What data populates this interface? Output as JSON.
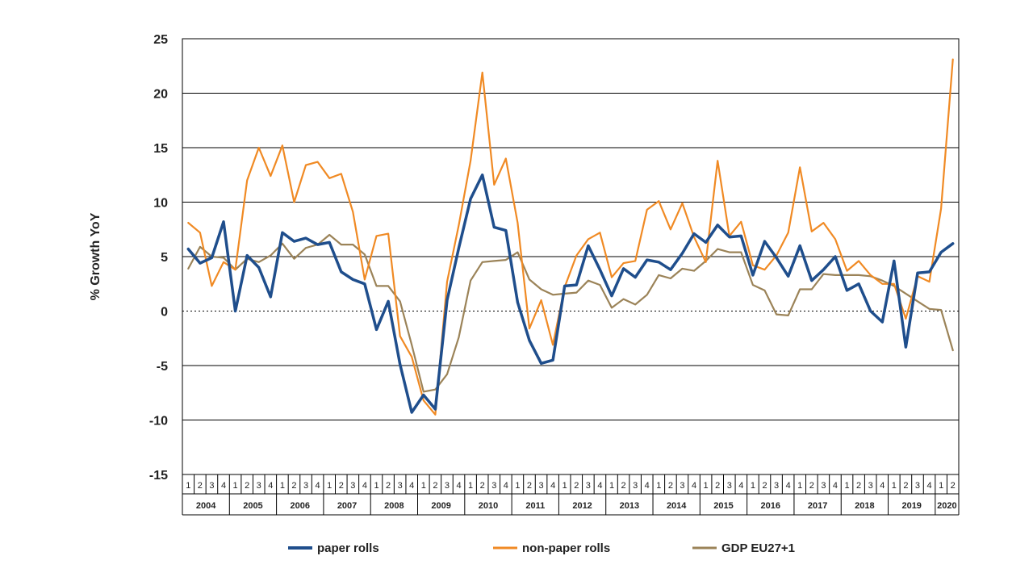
{
  "chart_data": {
    "type": "line",
    "title": "",
    "xlabel": "",
    "ylabel": "% Growth YoY",
    "ylim": [
      -15,
      25
    ],
    "ytick_step": 5,
    "grid": "horizontal",
    "legend_position": "bottom",
    "years": [
      "2004",
      "2005",
      "2006",
      "2007",
      "2008",
      "2009",
      "2010",
      "2011",
      "2012",
      "2013",
      "2014",
      "2015",
      "2016",
      "2017",
      "2018",
      "2019",
      "2020"
    ],
    "quarter_labels": [
      "1",
      "2",
      "3",
      "4"
    ],
    "x": [
      "2004 Q1",
      "2004 Q2",
      "2004 Q3",
      "2004 Q4",
      "2005 Q1",
      "2005 Q2",
      "2005 Q3",
      "2005 Q4",
      "2006 Q1",
      "2006 Q2",
      "2006 Q3",
      "2006 Q4",
      "2007 Q1",
      "2007 Q2",
      "2007 Q3",
      "2007 Q4",
      "2008 Q1",
      "2008 Q2",
      "2008 Q3",
      "2008 Q4",
      "2009 Q1",
      "2009 Q2",
      "2009 Q3",
      "2009 Q4",
      "2010 Q1",
      "2010 Q2",
      "2010 Q3",
      "2010 Q4",
      "2011 Q1",
      "2011 Q2",
      "2011 Q3",
      "2011 Q4",
      "2012 Q1",
      "2012 Q2",
      "2012 Q3",
      "2012 Q4",
      "2013 Q1",
      "2013 Q2",
      "2013 Q3",
      "2013 Q4",
      "2014 Q1",
      "2014 Q2",
      "2014 Q3",
      "2014 Q4",
      "2015 Q1",
      "2015 Q2",
      "2015 Q3",
      "2015 Q4",
      "2016 Q1",
      "2016 Q2",
      "2016 Q3",
      "2016 Q4",
      "2017 Q1",
      "2017 Q2",
      "2017 Q3",
      "2017 Q4",
      "2018 Q1",
      "2018 Q2",
      "2018 Q3",
      "2018 Q4",
      "2019 Q1",
      "2019 Q2",
      "2019 Q3",
      "2019 Q4",
      "2020 Q1",
      "2020 Q2"
    ],
    "series": [
      {
        "name": "paper rolls",
        "color": "#1f4e8c",
        "values": [
          5.7,
          4.4,
          4.9,
          8.2,
          0.0,
          5.1,
          4.0,
          1.3,
          7.2,
          6.4,
          6.7,
          6.1,
          6.3,
          3.6,
          2.9,
          2.5,
          -1.7,
          0.9,
          -4.9,
          -9.3,
          -7.7,
          -9.0,
          1.0,
          5.8,
          10.3,
          12.5,
          7.7,
          7.4,
          0.8,
          -2.7,
          -4.8,
          -4.5,
          2.3,
          2.4,
          6.0,
          3.8,
          1.4,
          3.9,
          3.1,
          4.7,
          4.5,
          3.8,
          5.3,
          7.1,
          6.3,
          7.9,
          6.8,
          6.9,
          3.3,
          6.4,
          4.9,
          3.2,
          6.0,
          2.8,
          3.8,
          5.0,
          1.9,
          2.5,
          0.0,
          -1.0,
          4.6,
          -3.3,
          3.5,
          3.6,
          5.4,
          6.2
        ]
      },
      {
        "name": "non-paper rolls",
        "color": "#f08a24",
        "values": [
          8.1,
          7.2,
          2.3,
          4.5,
          3.8,
          12.0,
          15.0,
          12.4,
          15.2,
          10.0,
          13.4,
          13.7,
          12.2,
          12.6,
          9.1,
          2.9,
          6.9,
          7.1,
          -2.3,
          -4.2,
          -8.2,
          -9.5,
          2.7,
          7.9,
          13.8,
          21.9,
          11.6,
          14.0,
          8.1,
          -1.6,
          1.0,
          -3.1,
          2.2,
          5.1,
          6.6,
          7.2,
          3.1,
          4.4,
          4.6,
          9.3,
          10.1,
          7.5,
          9.9,
          6.8,
          4.5,
          13.8,
          6.9,
          8.2,
          4.2,
          3.8,
          5.1,
          7.2,
          13.2,
          7.3,
          8.1,
          6.6,
          3.7,
          4.6,
          3.3,
          2.5,
          2.5,
          -0.7,
          3.2,
          2.7,
          9.4,
          23.1
        ]
      },
      {
        "name": "GDP EU27+1",
        "color": "#9b8358",
        "values": [
          3.9,
          5.9,
          5.0,
          4.9,
          3.8,
          4.8,
          4.5,
          5.1,
          6.2,
          4.8,
          5.8,
          6.1,
          7.0,
          6.1,
          6.1,
          5.2,
          2.3,
          2.3,
          0.9,
          -3.1,
          -7.4,
          -7.2,
          -5.8,
          -2.4,
          2.8,
          4.5,
          4.6,
          4.7,
          5.4,
          2.9,
          2.0,
          1.5,
          1.6,
          1.7,
          2.8,
          2.4,
          0.3,
          1.1,
          0.6,
          1.5,
          3.3,
          3.0,
          3.9,
          3.7,
          4.6,
          5.7,
          5.4,
          5.4,
          2.4,
          1.9,
          -0.3,
          -0.4,
          2.0,
          2.0,
          3.4,
          3.3,
          3.3,
          3.3,
          3.2,
          2.8,
          2.3,
          1.6,
          0.9,
          0.2,
          0.1,
          -3.6
        ]
      }
    ]
  }
}
